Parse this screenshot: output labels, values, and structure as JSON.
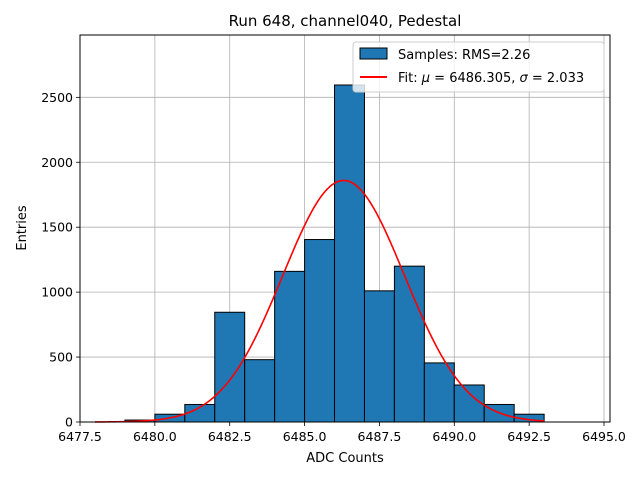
{
  "chart_data": {
    "type": "bar",
    "title": "Run 648, channel040, Pedestal",
    "xlabel": "ADC Counts",
    "ylabel": "Entries",
    "xlim": [
      6477.5,
      6495.2
    ],
    "ylim": [
      0,
      2980
    ],
    "xticks": [
      6477.5,
      6480.0,
      6482.5,
      6485.0,
      6487.5,
      6490.0,
      6492.5,
      6495.0
    ],
    "xtick_labels": [
      "6477.5",
      "6480.0",
      "6482.5",
      "6485.0",
      "6487.5",
      "6490.0",
      "6492.5",
      "6495.0"
    ],
    "yticks": [
      0,
      500,
      1000,
      1500,
      2000,
      2500
    ],
    "ytick_labels": [
      "0",
      "500",
      "1000",
      "1500",
      "2000",
      "2500"
    ],
    "grid": true,
    "legend_position": "top-right",
    "histogram": {
      "name": "Samples: RMS=2.26",
      "color": "#1f77b4",
      "bins": [
        {
          "x0": 6479.0,
          "x1": 6480.0,
          "count": 15
        },
        {
          "x0": 6480.0,
          "x1": 6481.0,
          "count": 60
        },
        {
          "x0": 6481.0,
          "x1": 6482.0,
          "count": 135
        },
        {
          "x0": 6482.0,
          "x1": 6483.0,
          "count": 845
        },
        {
          "x0": 6483.0,
          "x1": 6484.0,
          "count": 480
        },
        {
          "x0": 6484.0,
          "x1": 6485.0,
          "count": 1160
        },
        {
          "x0": 6485.0,
          "x1": 6486.0,
          "count": 1405
        },
        {
          "x0": 6486.0,
          "x1": 6487.0,
          "count": 2595
        },
        {
          "x0": 6487.0,
          "x1": 6488.0,
          "count": 1010
        },
        {
          "x0": 6488.0,
          "x1": 6489.0,
          "count": 1200
        },
        {
          "x0": 6489.0,
          "x1": 6490.0,
          "count": 455
        },
        {
          "x0": 6490.0,
          "x1": 6491.0,
          "count": 285
        },
        {
          "x0": 6491.0,
          "x1": 6492.0,
          "count": 135
        },
        {
          "x0": 6492.0,
          "x1": 6493.0,
          "count": 60
        }
      ]
    },
    "fit": {
      "legend_prefix": "Fit: ",
      "mu_symbol": "μ",
      "mu_text": " = 6486.305, ",
      "sigma_symbol": "σ",
      "sigma_text": " = 2.033",
      "color": "#ff0000",
      "mu": 6486.305,
      "sigma": 2.033,
      "amplitude": 1860,
      "x_range": [
        6478.0,
        6493.0
      ]
    }
  }
}
